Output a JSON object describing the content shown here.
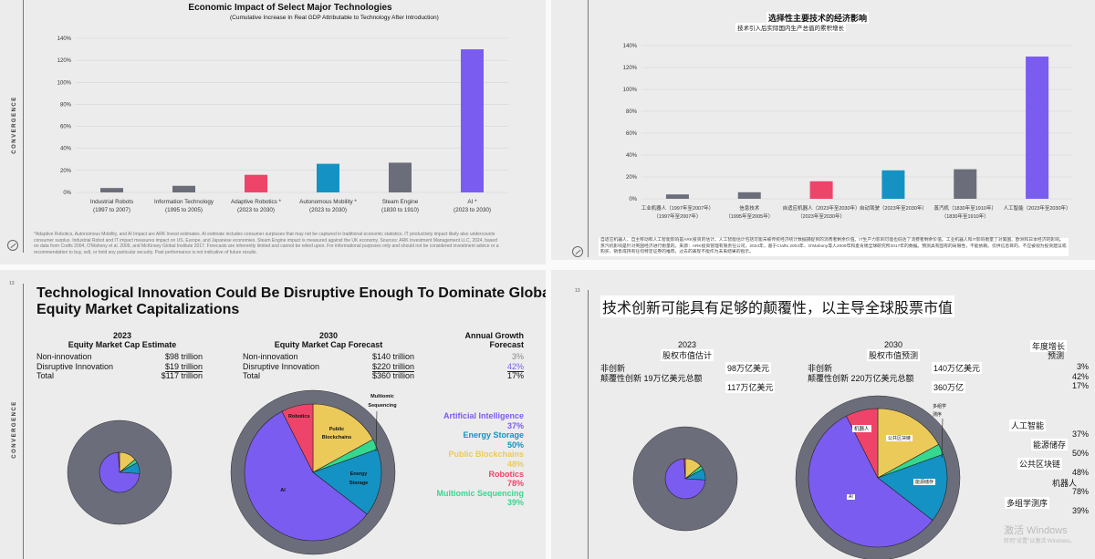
{
  "colors": {
    "background": "#ececec",
    "gray": "#6b6e7a",
    "ai": "#7b5cf0",
    "robotics": "#ef4469",
    "energy_storage": "#1592c4",
    "public_blockchains": "#ecca5a",
    "multiomic_sequencing": "#35d88f",
    "non_innovation": "#6b6e7a"
  },
  "top_left": {
    "side_label": "CONVERGENCE",
    "logo": "ark-logo-icon",
    "footnote": "*Adaptive Robotics, Autonomous Mobility, and AI Impact are ARK Invest estimates. AI estimate includes consumer surpluses that may not be captured in traditional economic statistics. IT productivity impact likely also undercounts consumer surplus. Industrial Robot and IT impact measures impact on US, Europe, and Japanese economies. Steam Engine impact is measured against the UK economy. Sources: ARK Investment Management LLC, 2024, based on data from Crafts 2004, O'Mahony et al. 2009, and McKinsey Global Institute 2017. Forecasts are inherently limited and cannot be relied upon. For informational purposes only and should not be considered investment advice or a recommendation to buy, sell, or hold any particular security. Past performance is not indicative of future results."
  },
  "top_right": {
    "logo": "ark-logo-icon",
    "footnote": "自适应机器人、自主移动和人工智能影响是ARK投资的估计。人工智能估计包括可能未被传统经济统计数据捕捉到的消费者剩余价值。IT生产力影响可能也低估了消费者剩余价值。工业机器人和IT影响衡量了对美国、欧洲和日本经济的影响。蒸汽机影响是针对英国经济进行衡量的。来源：ARK投资管理有限责任公司，2024年，基于Crafts 2004年、O'Mahony等人2009年和麦肯锡全球研究所2017年的数据。预测具有固有的局限性，不能依赖。仅供信息目的，不应被视为投资建议或购买、销售或持有任何特定证券的推荐。过去的表现不能作为未来结果的指示。"
  },
  "bottom_left": {
    "page_number": "13",
    "side_label": "CONVERGENCE",
    "title_line1": "Technological Innovation Could Be Disruptive Enough To Dominate Global",
    "title_line2": "Equity Market Capitalizations",
    "y2023": {
      "year": "2023",
      "heading": "Equity Market Cap Estimate",
      "rows": [
        {
          "label": "Non-innovation",
          "value": "$98 trillion"
        },
        {
          "label": "Disruptive Innovation",
          "value": "$19 trillion"
        },
        {
          "label": "Total",
          "value": "$117 trillion"
        }
      ]
    },
    "y2030": {
      "year": "2030",
      "heading": "Equity Market Cap Forecast",
      "rows": [
        {
          "label": "Non-innovation",
          "value": "$140 trillion"
        },
        {
          "label": "Disruptive Innovation",
          "value": "$220 trillion"
        },
        {
          "label": "Total",
          "value": "$360 trillion"
        }
      ]
    },
    "growth": {
      "heading1": "Annual Growth",
      "heading2": "Forecast",
      "values": [
        "3%",
        "42%",
        "17%"
      ]
    },
    "legend": [
      {
        "name": "Artificial Intelligence",
        "value": "37%"
      },
      {
        "name": "Energy Storage",
        "value": "50%"
      },
      {
        "name": "Public Blockchains",
        "value": "48%"
      },
      {
        "name": "Robotics",
        "value": "78%"
      },
      {
        "name": "Multiomic Sequencing",
        "value": "39%"
      }
    ],
    "pie_labels": {
      "robotics": "Robotics",
      "pb1": "Public",
      "pb2": "Blockchains",
      "es1": "Energy",
      "es2": "Storage",
      "ai": "AI",
      "ms1": "Multiomic",
      "ms2": "Sequencing"
    }
  },
  "bottom_right": {
    "page_number": "13",
    "title": "技术创新可能具有足够的颠覆性，以主导全球股票市值",
    "y2023": {
      "year": "2023",
      "heading": "股权市值估计",
      "label1": "非创新",
      "label2": "颠覆性创新 19万亿美元总额",
      "value1": "98万亿美元",
      "value3": "117万亿美元"
    },
    "y2030": {
      "year": "2030",
      "heading": "股权市值预测",
      "label1": "非创新",
      "label2": "颠覆性创新 220万亿美元总额",
      "value1": "140万亿美元",
      "value3": "360万亿"
    },
    "growth": {
      "heading1": "年度增长",
      "heading2": "预测",
      "values": [
        "3%",
        "42%",
        "17%"
      ]
    },
    "legend": [
      {
        "name": "人工智能",
        "value": "37%"
      },
      {
        "name": "能源储存",
        "value": "50%"
      },
      {
        "name": "公共区块链",
        "value": "48%"
      },
      {
        "name": "机器人",
        "value": "78%"
      },
      {
        "name": "多组学测序",
        "value": "39%"
      }
    ],
    "pie_labels": {
      "robotics": "机器人",
      "pb": "公共区块链",
      "es": "能源储存",
      "ai": "AI",
      "ms1": "多组学",
      "ms2": "测序"
    },
    "watermark1": "激活 Windows",
    "watermark2": "转到\"设置\"以激活 Windows。"
  },
  "chart_data": [
    {
      "type": "bar",
      "title": "Economic Impact of Select Major Technologies",
      "subtitle": "(Cumulative Increase In Real GDP Attributable to Technology After Introduction)",
      "xlabel": "",
      "ylabel": "",
      "ylim": [
        0,
        140
      ],
      "yticks": [
        "0%",
        "20%",
        "40%",
        "60%",
        "80%",
        "100%",
        "120%",
        "140%"
      ],
      "grid": true,
      "categories": [
        [
          "Industrial Robots",
          "(1997 to 2007)"
        ],
        [
          "Information Technology",
          "(1995 to 2005)"
        ],
        [
          "Adaptive Robotics *",
          "(2023 to 2030)"
        ],
        [
          "Autonomous Mobility *",
          "(2023 to 2030)"
        ],
        [
          "Steam Engine",
          "(1830 to 1910)"
        ],
        [
          "AI *",
          "(2023 to 2030)"
        ]
      ],
      "values": [
        4,
        6,
        16,
        26,
        27,
        130
      ],
      "bar_colors": [
        "#6b6e7a",
        "#6b6e7a",
        "#ef4469",
        "#1592c4",
        "#6b6e7a",
        "#7b5cf0"
      ]
    },
    {
      "type": "bar",
      "title": "选择性主要技术的经济影响",
      "subtitle": "技术引入后实际国内生产总值的累积增长",
      "xlabel": "",
      "ylabel": "",
      "ylim": [
        0,
        140
      ],
      "yticks": [
        "0%",
        "20%",
        "40%",
        "60%",
        "80%",
        "100%",
        "120%",
        "140%"
      ],
      "grid": true,
      "categories": [
        [
          "工业机器人（1997年至2007年）",
          "（1997年至2007年）"
        ],
        [
          "信息技术",
          "（1995年至2005年）"
        ],
        [
          "自适应机器人（2023年至2030年）",
          "（2023年至2030年）"
        ],
        [
          "自动驾驶（2023年至2030年）",
          ""
        ],
        [
          "蒸汽机（1830年至1910年）",
          "（1830年至1910年）"
        ],
        [
          "人工智能（2023年至2030年）",
          ""
        ]
      ],
      "values": [
        4,
        6,
        16,
        26,
        27,
        130
      ],
      "bar_colors": [
        "#6b6e7a",
        "#6b6e7a",
        "#ef4469",
        "#1592c4",
        "#6b6e7a",
        "#7b5cf0"
      ]
    },
    {
      "type": "pie",
      "title": "2023 Equity Market Cap (trillion USD)",
      "outer": {
        "name": "Non-innovation",
        "value": 98
      },
      "inner_total": 19,
      "slices": [
        {
          "name": "Public Blockchains",
          "share": 14
        },
        {
          "name": "Multiomic Sequencing",
          "share": 3
        },
        {
          "name": "Energy Storage",
          "share": 9
        },
        {
          "name": "AI",
          "share": 73
        },
        {
          "name": "Robotics",
          "share": 1
        }
      ]
    },
    {
      "type": "pie",
      "title": "2030 Equity Market Cap (trillion USD)",
      "outer": {
        "name": "Non-innovation",
        "value": 140
      },
      "inner_total": 220,
      "slices": [
        {
          "name": "Public Blockchains",
          "share": 17
        },
        {
          "name": "Multiomic Sequencing",
          "share": 2.5
        },
        {
          "name": "Energy Storage",
          "share": 16
        },
        {
          "name": "AI",
          "share": 57
        },
        {
          "name": "Robotics",
          "share": 7.5
        }
      ]
    }
  ]
}
